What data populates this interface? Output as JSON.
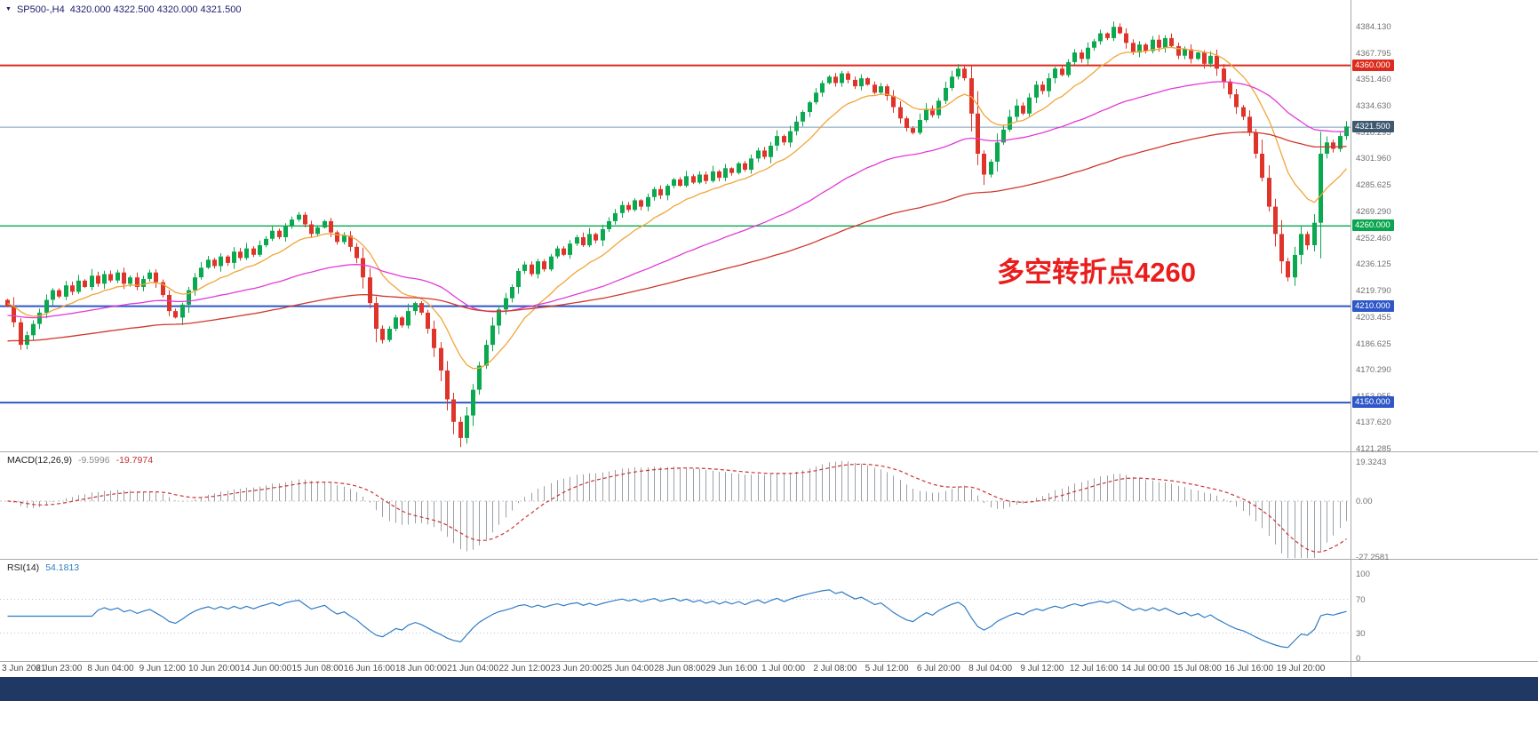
{
  "header": {
    "symbol": "SP500-,H4",
    "ohlc": "4320.000 4322.500 4320.000 4321.500"
  },
  "annotation": {
    "text": "多空转折点4260",
    "color": "#ea1c1c"
  },
  "colors": {
    "bull": "#0aa84f",
    "bear": "#df342a",
    "background": "#ffffff",
    "statusbar": "#1f3864"
  },
  "levels": [
    {
      "price": 4360,
      "label": "4360.000",
      "color": "#dd2a1c",
      "width": 2
    },
    {
      "price": 4260,
      "label": "4260.000",
      "color": "#0aa64f",
      "width": 1.4
    },
    {
      "price": 4210,
      "label": "4210.000",
      "color": "#2e57c8",
      "width": 2
    },
    {
      "price": 4150,
      "label": "4150.000",
      "color": "#2e57c8",
      "width": 2
    }
  ],
  "current_price": {
    "price": 4321.5,
    "label": "4321.500",
    "line_color": "#7f9db9",
    "tag_color": "#3d586f"
  },
  "time_axis": {
    "labels": [
      "3 Jun 2021",
      "6 Jun 23:00",
      "8 Jun 04:00",
      "9 Jun 12:00",
      "10 Jun 20:00",
      "14 Jun 00:00",
      "15 Jun 08:00",
      "16 Jun 16:00",
      "18 Jun 00:00",
      "21 Jun 04:00",
      "22 Jun 12:00",
      "23 Jun 20:00",
      "25 Jun 04:00",
      "28 Jun 08:00",
      "29 Jun 16:00",
      "1 Jul 00:00",
      "2 Jul 08:00",
      "5 Jul 12:00",
      "6 Jul 20:00",
      "8 Jul 04:00",
      "9 Jul 12:00",
      "12 Jul 16:00",
      "14 Jul 00:00",
      "15 Jul 08:00",
      "16 Jul 16:00",
      "19 Jul 20:00"
    ]
  },
  "chart_data": {
    "type": "candlestick",
    "symbol": "SP500-",
    "timeframe": "H4",
    "current_bar": {
      "open": 4320.0,
      "high": 4322.5,
      "low": 4320.0,
      "close": 4321.5
    },
    "bars_per_x_label": 8,
    "price_axis": {
      "top": 4384.13,
      "bottom": 4121.285,
      "labels": [
        "4384.130",
        "4367.795",
        "4351.460",
        "4334.630",
        "4318.295",
        "4301.960",
        "4285.625",
        "4269.290",
        "4252.460",
        "4236.125",
        "4219.790",
        "4203.455",
        "4186.625",
        "4170.290",
        "4153.955",
        "4137.620",
        "4121.285"
      ]
    },
    "closes": [
      4210,
      4200,
      4186,
      4192,
      4199,
      4206,
      4214,
      4220,
      4216,
      4223,
      4219,
      4226,
      4222,
      4229,
      4224,
      4230,
      4226,
      4231,
      4224,
      4228,
      4222,
      4227,
      4231,
      4225,
      4217,
      4207,
      4203,
      4211,
      4220,
      4228,
      4234,
      4239,
      4235,
      4241,
      4237,
      4244,
      4240,
      4246,
      4242,
      4248,
      4252,
      4257,
      4253,
      4260,
      4264,
      4267,
      4261,
      4255,
      4259,
      4263,
      4256,
      4250,
      4254,
      4247,
      4240,
      4228,
      4212,
      4196,
      4189,
      4196,
      4203,
      4198,
      4207,
      4212,
      4206,
      4196,
      4184,
      4170,
      4152,
      4138,
      4128,
      4142,
      4158,
      4173,
      4186,
      4198,
      4208,
      4215,
      4222,
      4232,
      4236,
      4230,
      4238,
      4233,
      4241,
      4246,
      4242,
      4249,
      4253,
      4248,
      4255,
      4251,
      4258,
      4263,
      4268,
      4273,
      4270,
      4276,
      4272,
      4278,
      4283,
      4279,
      4285,
      4289,
      4285,
      4291,
      4287,
      4292,
      4288,
      4294,
      4290,
      4296,
      4293,
      4299,
      4295,
      4302,
      4307,
      4303,
      4310,
      4316,
      4312,
      4319,
      4325,
      4331,
      4337,
      4343,
      4349,
      4353,
      4349,
      4355,
      4351,
      4347,
      4352,
      4348,
      4343,
      4347,
      4341,
      4334,
      4327,
      4321,
      4318,
      4326,
      4333,
      4329,
      4338,
      4346,
      4353,
      4358,
      4352,
      4330,
      4305,
      4292,
      4300,
      4312,
      4320,
      4328,
      4335,
      4330,
      4340,
      4348,
      4344,
      4352,
      4358,
      4354,
      4362,
      4368,
      4364,
      4371,
      4375,
      4380,
      4377,
      4384,
      4380,
      4374,
      4368,
      4373,
      4369,
      4376,
      4371,
      4377,
      4372,
      4366,
      4370,
      4364,
      4368,
      4361,
      4366,
      4358,
      4350,
      4342,
      4334,
      4328,
      4318,
      4305,
      4290,
      4272,
      4255,
      4238,
      4228,
      4242,
      4255,
      4248,
      4262,
      4305,
      4312,
      4308,
      4316,
      4322
    ],
    "moving_averages": [
      {
        "name": "fast-ma",
        "period": 13,
        "color": "#efa63a",
        "seed": 4212
      },
      {
        "name": "mid-ma",
        "period": 55,
        "color": "#e23ad7",
        "seed": 4204
      },
      {
        "name": "slow-ma",
        "period": 120,
        "color": "#cf382c",
        "seed": 4188
      }
    ],
    "macd": {
      "label": "MACD(12,26,9)",
      "fast": 12,
      "slow": 26,
      "signal": 9,
      "value": "-9.5996",
      "signal_value": "-19.7974",
      "histogram_color": "#9aa0a6",
      "signal_color": "#cc3333",
      "axis_labels": [
        {
          "text": "19.3243",
          "v": 19.3243
        },
        {
          "text": "0.00",
          "v": 0
        },
        {
          "text": "-27.2581",
          "v": -27.2581
        }
      ]
    },
    "rsi": {
      "label": "RSI(14)",
      "period": 14,
      "value": "54.1813",
      "color": "#2f7cc4",
      "levels": [
        70,
        30
      ],
      "axis_labels": [
        {
          "text": "100",
          "v": 100
        },
        {
          "text": "70",
          "v": 70
        },
        {
          "text": "30",
          "v": 30
        },
        {
          "text": "0",
          "v": 0
        }
      ]
    }
  }
}
